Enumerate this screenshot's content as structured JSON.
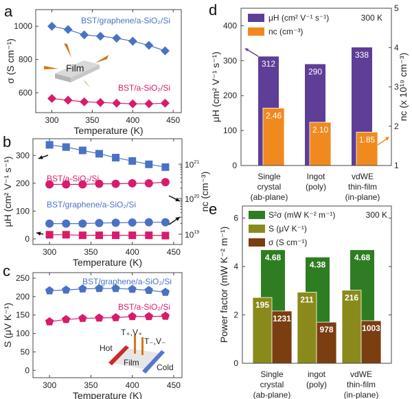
{
  "chart_data": [
    {
      "panel": "a",
      "type": "line",
      "xlabel": "Temperature (K)",
      "ylabel": "σ (S cm⁻¹)",
      "xlim": [
        280,
        460
      ],
      "ylim": [
        480,
        1100
      ],
      "xticks": [
        300,
        350,
        400,
        450
      ],
      "yticks": [
        600,
        800,
        1000
      ],
      "x": [
        300,
        320,
        340,
        360,
        380,
        400,
        420,
        440
      ],
      "series": [
        {
          "name": "BST/graphene/a-SiO₂/Si",
          "color": "#4a72c4",
          "marker": "diamond",
          "values": [
            1000,
            980,
            948,
            940,
            928,
            910,
            885,
            852
          ]
        },
        {
          "name": "BST/a-SiO₂/Si",
          "color": "#d81b6a",
          "marker": "diamond",
          "values": [
            565,
            555,
            545,
            541,
            537,
            533,
            533,
            537
          ]
        }
      ],
      "inset_label": "Film"
    },
    {
      "panel": "b",
      "type": "line",
      "xlabel": "Temperature (K)",
      "ylabel": "μH (cm² V⁻¹ s⁻¹)",
      "y2label": "nc (cm⁻³)",
      "xlim": [
        280,
        460
      ],
      "ylim": [
        -20,
        360
      ],
      "xticks": [
        300,
        350,
        400,
        450
      ],
      "yticks": [
        0,
        100,
        200,
        300
      ],
      "y2ticks": [
        "10^19",
        "10^20",
        "10^21"
      ],
      "x": [
        300,
        320,
        340,
        360,
        380,
        400,
        420,
        440
      ],
      "series": [
        {
          "name": "BST/graphene/a-SiO₂/Si (nc)",
          "color": "#4a72c4",
          "marker": "square",
          "axis": "left-mapped",
          "values": [
            338,
            330,
            318,
            306,
            292,
            280,
            268,
            258
          ]
        },
        {
          "name": "BST/a-SiO₂/Si (μH)",
          "color": "#d81b6a",
          "marker": "circle",
          "values": [
            196,
            196,
            196,
            198,
            198,
            200,
            200,
            204
          ]
        },
        {
          "name": "BST/graphene/a-SiO₂/Si (μH)",
          "color": "#4a72c4",
          "marker": "circle",
          "values": [
            55,
            55,
            55,
            57,
            58,
            59,
            60,
            60
          ]
        },
        {
          "name": "BST/a-SiO₂/Si (nc)",
          "color": "#d81b6a",
          "marker": "square",
          "axis": "left-mapped",
          "values": [
            15,
            15,
            13,
            13,
            13,
            13,
            13,
            12
          ]
        }
      ],
      "labels": [
        "BST/a-SiO₂/Si",
        "BST/graphene/a-SiO₂/Si"
      ]
    },
    {
      "panel": "c",
      "type": "line",
      "xlabel": "Temperature (K)",
      "ylabel": "S (μV K⁻¹)",
      "xlim": [
        280,
        460
      ],
      "ylim": [
        -20,
        265
      ],
      "xticks": [
        300,
        350,
        400,
        450
      ],
      "yticks": [
        0,
        50,
        100,
        150,
        200,
        250
      ],
      "x": [
        300,
        320,
        340,
        360,
        380,
        400,
        420,
        440
      ],
      "series": [
        {
          "name": "BST/graphene/a-SiO₂/Si",
          "color": "#4a72c4",
          "marker": "pentagon",
          "values": [
            216,
            218,
            221,
            222,
            222,
            220,
            217,
            212
          ]
        },
        {
          "name": "BST/a-SiO₂/Si",
          "color": "#d81b6a",
          "marker": "pentagon",
          "values": [
            132,
            138,
            141,
            142,
            143,
            146,
            146,
            147
          ]
        }
      ],
      "inset_labels": {
        "hot": "Hot",
        "cold": "Cold",
        "film": "Film",
        "tplus": "T₊,V₊",
        "tminus": "T₋,V₋"
      }
    },
    {
      "panel": "d",
      "type": "bar",
      "annotation": "300 K",
      "ylabel": "μH (cm² V⁻¹ s⁻¹)",
      "y2label": "nc (x 10¹⁹ cm⁻³)",
      "ylim": [
        0,
        450
      ],
      "y2lim": [
        1,
        5
      ],
      "yticks": [
        0,
        100,
        200,
        300,
        400
      ],
      "y2ticks": [
        1,
        2,
        3,
        4,
        5
      ],
      "categories": [
        "Single crystal (ab-plane)",
        "Ingot (poly)",
        "vdWE thin-film (in-plane)"
      ],
      "category_lines": [
        [
          "Single",
          "crystal",
          "(ab-plane)"
        ],
        [
          "Ingot",
          "(poly)"
        ],
        [
          "vdWE",
          "thin-film",
          "(in-plane)"
        ]
      ],
      "series": [
        {
          "name": "μH (cm² V⁻¹ s⁻¹)",
          "color": "#5e3e96",
          "axis": "left",
          "values": [
            312,
            290,
            338
          ],
          "labels": [
            "312",
            "290",
            "338"
          ]
        },
        {
          "name": "nc (cm⁻³)",
          "color": "#f08a1e",
          "axis": "right",
          "values": [
            2.46,
            2.1,
            1.85
          ],
          "labels": [
            "2.46",
            "2.10",
            "1.85"
          ]
        }
      ]
    },
    {
      "panel": "e",
      "type": "bar",
      "annotation": "300 K",
      "ylabel": "Power factor (mW K⁻² m⁻¹)",
      "ylim": [
        0,
        6.5
      ],
      "yticks": [
        0,
        2,
        4,
        6
      ],
      "categories": [
        "Single crystal (ab-plane)",
        "ingot (poly)",
        "vdWE thin-film (in-plane)"
      ],
      "category_lines": [
        [
          "Single",
          "crystal",
          "(ab-plane)"
        ],
        [
          "ingot",
          "(poly)"
        ],
        [
          "vdWE",
          "thin-film",
          "(in-plane)"
        ]
      ],
      "series": [
        {
          "name": "S²σ (mW K⁻² m⁻¹)",
          "color": "#2e7d22",
          "values": [
            4.68,
            4.38,
            4.68
          ],
          "labels": [
            "4.68",
            "4.38",
            "4.68"
          ]
        },
        {
          "name": "S (μV K⁻¹)",
          "color": "#8a8a1c",
          "values": [
            2.72,
            2.94,
            3.02
          ],
          "labels": [
            "195",
            "211",
            "216"
          ]
        },
        {
          "name": "σ (S cm⁻¹)",
          "color": "#7a3e10",
          "values": [
            2.16,
            1.7,
            1.76
          ],
          "labels": [
            "1231",
            "978",
            "1003"
          ]
        }
      ]
    }
  ],
  "panel_labels": [
    "a",
    "b",
    "c",
    "d",
    "e"
  ]
}
